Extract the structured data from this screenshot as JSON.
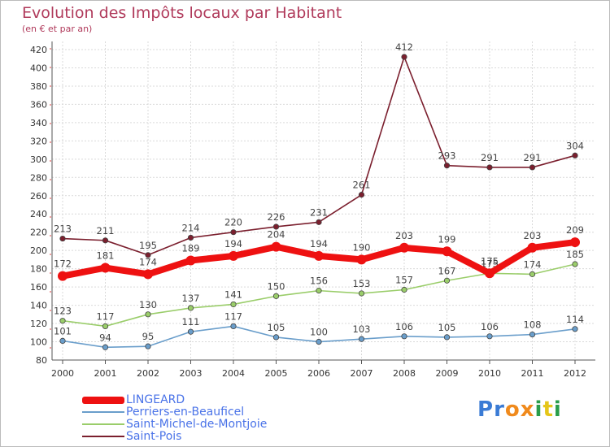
{
  "chart_data": {
    "type": "line",
    "title": "Evolution des Impôts locaux par Habitant",
    "subtitle": "(en € et par an)",
    "categories": [
      "2000",
      "2001",
      "2002",
      "2003",
      "2004",
      "2005",
      "2006",
      "2007",
      "2008",
      "2009",
      "2010",
      "2011",
      "2012"
    ],
    "ylim": [
      80,
      420
    ],
    "yticks": [
      80,
      100,
      120,
      140,
      160,
      180,
      200,
      220,
      240,
      260,
      280,
      300,
      320,
      340,
      360,
      380,
      400,
      420
    ],
    "grid": true,
    "legend_position": "bottom-left",
    "series": [
      {
        "name": "Saint-Pois",
        "color": "#7b1f2e",
        "values": [
          213,
          211,
          195,
          214,
          220,
          226,
          231,
          261,
          412,
          293,
          291,
          291,
          304
        ]
      },
      {
        "name": "Saint-Michel-de-Montjoie",
        "color": "#9acd6a",
        "values": [
          123,
          117,
          130,
          137,
          141,
          150,
          156,
          153,
          157,
          167,
          175,
          174,
          185
        ]
      },
      {
        "name": "Perriers-en-Beauficel",
        "color": "#6a9ecb",
        "values": [
          101,
          94,
          95,
          111,
          117,
          105,
          100,
          103,
          106,
          105,
          106,
          108,
          114
        ]
      },
      {
        "name": "LINGEARD",
        "color": "#ee1111",
        "values": [
          172,
          181,
          174,
          189,
          194,
          204,
          194,
          190,
          203,
          199,
          175,
          203,
          209
        ]
      }
    ]
  },
  "legend": [
    {
      "label": "LINGEARD",
      "color": "#ee1111",
      "width": 9
    },
    {
      "label": "Perriers-en-Beauficel",
      "color": "#6a9ecb",
      "width": 2
    },
    {
      "label": "Saint-Michel-de-Montjoie",
      "color": "#9acd6a",
      "width": 2
    },
    {
      "label": "Saint-Pois",
      "color": "#7b1f2e",
      "width": 2
    }
  ],
  "logo": {
    "letters": [
      "P",
      "r",
      "o",
      "x",
      "i",
      "t",
      "i"
    ],
    "colors": [
      "#3a7bd5",
      "#3a7bd5",
      "#f08a1c",
      "#f08a1c",
      "#2a9d4a",
      "#e5c618",
      "#2a9d4a"
    ]
  }
}
